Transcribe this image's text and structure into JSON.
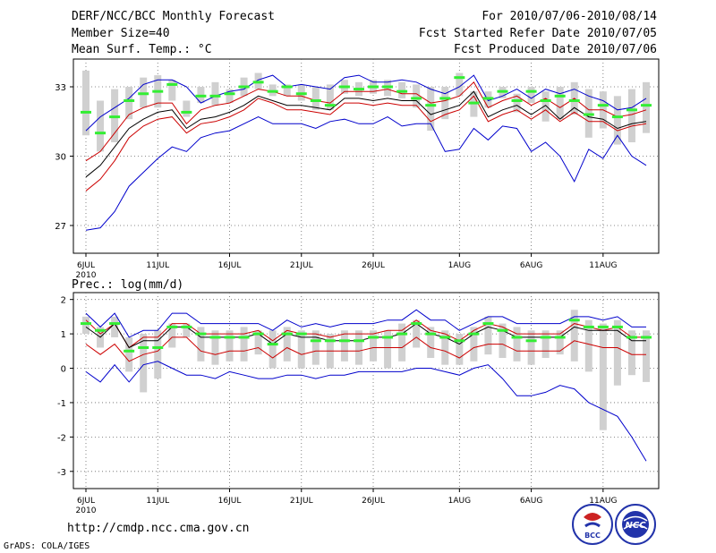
{
  "header": {
    "title": "DERF/NCC/BCC Monthly Forecast",
    "member": "Member Size=40",
    "variable": "Mean Surf. Temp.: °C",
    "period": "For 2010/07/06-2010/08/14",
    "refer": "Fcst Started Refer Date 2010/07/05",
    "produced": "Fcst Produced Date 2010/07/06"
  },
  "footer": {
    "url": "http://cmdp.ncc.cma.gov.cn",
    "grads": "GrADS: COLA/IGES",
    "logo1": "BCC",
    "logo2": "NCC"
  },
  "colors": {
    "max_min": "#0000cc",
    "pct_line": "#cc0000",
    "mean_line": "#000000",
    "bar": "#d0d0d0",
    "marker": "#33ee33"
  },
  "chart_data": [
    {
      "type": "line",
      "title": "Mean Surf. Temp.: °C",
      "ylim": [
        25.8,
        34.2
      ],
      "yticks": [
        27,
        30,
        33
      ],
      "xticks": [
        0,
        5,
        10,
        15,
        20,
        26,
        31,
        36
      ],
      "xtick_labels": [
        "6JUL",
        "11JUL",
        "16JUL",
        "21JUL",
        "26JUL",
        "1AUG",
        "6AUG",
        "11AUG"
      ],
      "year_label": "2010",
      "days": 40,
      "series": [
        {
          "name": "max",
          "values": [
            31.1,
            31.7,
            32.1,
            32.5,
            33.1,
            33.3,
            33.3,
            33.0,
            32.3,
            32.6,
            32.8,
            32.9,
            33.3,
            33.5,
            33.0,
            33.1,
            33.0,
            32.9,
            33.4,
            33.5,
            33.2,
            33.2,
            33.3,
            33.2,
            32.9,
            32.7,
            33.0,
            33.5,
            32.4,
            32.6,
            32.9,
            32.5,
            32.9,
            32.7,
            32.9,
            32.6,
            32.4,
            32.0,
            32.1,
            32.5
          ]
        },
        {
          "name": "high",
          "values": [
            29.8,
            30.2,
            31.0,
            31.8,
            32.1,
            32.3,
            32.3,
            31.4,
            32.0,
            32.2,
            32.3,
            32.6,
            32.9,
            32.8,
            32.6,
            32.6,
            32.4,
            32.3,
            32.8,
            32.8,
            32.8,
            32.9,
            32.7,
            32.7,
            32.3,
            32.4,
            32.6,
            33.2,
            32.1,
            32.4,
            32.6,
            32.2,
            32.5,
            32.1,
            32.5,
            32.0,
            32.0,
            31.7,
            31.8,
            32.0
          ]
        },
        {
          "name": "mean",
          "values": [
            29.1,
            29.6,
            30.4,
            31.2,
            31.6,
            31.9,
            32.0,
            31.2,
            31.6,
            31.7,
            31.9,
            32.2,
            32.6,
            32.4,
            32.2,
            32.2,
            32.1,
            32.0,
            32.5,
            32.5,
            32.4,
            32.5,
            32.4,
            32.4,
            31.8,
            32.0,
            32.2,
            32.8,
            31.7,
            32.0,
            32.2,
            31.8,
            32.2,
            31.6,
            32.1,
            31.7,
            31.6,
            31.2,
            31.4,
            31.5
          ]
        },
        {
          "name": "low",
          "values": [
            28.5,
            29.0,
            29.8,
            30.8,
            31.3,
            31.6,
            31.7,
            31.0,
            31.4,
            31.5,
            31.7,
            32.0,
            32.5,
            32.3,
            32.0,
            32.0,
            31.9,
            31.8,
            32.3,
            32.3,
            32.2,
            32.3,
            32.2,
            32.2,
            31.5,
            31.8,
            32.0,
            32.6,
            31.5,
            31.8,
            32.0,
            31.6,
            32.0,
            31.5,
            31.9,
            31.5,
            31.5,
            31.1,
            31.3,
            31.4
          ]
        },
        {
          "name": "min",
          "values": [
            26.8,
            26.9,
            27.6,
            28.7,
            29.3,
            29.9,
            30.4,
            30.2,
            30.8,
            31.0,
            31.1,
            31.4,
            31.7,
            31.4,
            31.4,
            31.4,
            31.2,
            31.5,
            31.6,
            31.4,
            31.4,
            31.7,
            31.3,
            31.4,
            31.4,
            30.2,
            30.3,
            31.2,
            30.7,
            31.3,
            31.2,
            30.2,
            30.6,
            30.0,
            28.9,
            30.3,
            29.9,
            30.9,
            30.0,
            29.6
          ]
        },
        {
          "name": "marker",
          "values": [
            31.9,
            31.0,
            31.7,
            32.4,
            32.7,
            32.8,
            33.1,
            31.9,
            32.6,
            32.6,
            32.7,
            33.0,
            33.2,
            32.8,
            33.0,
            32.7,
            32.4,
            32.2,
            33.0,
            32.9,
            33.0,
            33.0,
            32.8,
            32.5,
            32.2,
            32.5,
            33.4,
            32.3,
            32.5,
            32.8,
            32.4,
            32.8,
            32.4,
            32.6,
            32.4,
            31.8,
            32.2,
            31.7,
            32.0,
            32.2
          ]
        },
        {
          "name": "bar_top",
          "values": [
            33.7,
            32.4,
            32.9,
            33.0,
            33.4,
            33.5,
            33.3,
            32.4,
            33.0,
            33.2,
            32.9,
            33.4,
            33.6,
            33.1,
            33.1,
            33.1,
            33.0,
            33.1,
            33.3,
            33.2,
            33.3,
            33.3,
            33.2,
            33.1,
            33.0,
            33.0,
            33.6,
            32.8,
            32.8,
            33.0,
            32.7,
            33.0,
            32.8,
            33.0,
            33.2,
            32.9,
            32.8,
            32.6,
            32.9,
            33.2
          ]
        },
        {
          "name": "bar_bottom",
          "values": [
            30.9,
            30.2,
            30.6,
            31.6,
            32.1,
            32.1,
            32.4,
            31.7,
            32.3,
            32.2,
            32.3,
            32.6,
            32.9,
            32.6,
            32.6,
            32.4,
            32.0,
            32.0,
            32.7,
            32.6,
            32.7,
            32.6,
            32.5,
            32.1,
            31.1,
            31.6,
            32.6,
            31.7,
            32.1,
            32.5,
            31.9,
            32.3,
            31.5,
            31.6,
            31.8,
            30.8,
            31.2,
            30.5,
            30.6,
            31.0
          ]
        }
      ]
    },
    {
      "type": "line",
      "title": "Prec.: log(mm/d)",
      "ylim": [
        -3.5,
        2.2
      ],
      "yticks": [
        -3,
        -2,
        -1,
        0,
        1,
        2
      ],
      "xticks": [
        0,
        5,
        10,
        15,
        20,
        26,
        31,
        36
      ],
      "xtick_labels": [
        "6JUL",
        "11JUL",
        "16JUL",
        "21JUL",
        "26JUL",
        "1AUG",
        "6AUG",
        "11AUG"
      ],
      "year_label": "2010",
      "days": 40,
      "series": [
        {
          "name": "max",
          "values": [
            1.6,
            1.2,
            1.6,
            0.9,
            1.1,
            1.1,
            1.6,
            1.6,
            1.3,
            1.3,
            1.3,
            1.3,
            1.3,
            1.1,
            1.4,
            1.2,
            1.3,
            1.2,
            1.3,
            1.3,
            1.3,
            1.4,
            1.4,
            1.7,
            1.4,
            1.4,
            1.1,
            1.3,
            1.5,
            1.5,
            1.3,
            1.3,
            1.3,
            1.3,
            1.5,
            1.5,
            1.4,
            1.5,
            1.2,
            1.2
          ]
        },
        {
          "name": "high",
          "values": [
            1.4,
            1.0,
            1.3,
            0.6,
            0.9,
            0.9,
            1.3,
            1.3,
            1.0,
            1.0,
            1.0,
            1.0,
            1.1,
            0.8,
            1.1,
            1.0,
            1.0,
            0.9,
            1.0,
            1.0,
            1.0,
            1.1,
            1.1,
            1.4,
            1.1,
            1.0,
            0.8,
            1.1,
            1.3,
            1.2,
            1.0,
            1.0,
            1.0,
            1.0,
            1.3,
            1.2,
            1.1,
            1.2,
            0.9,
            0.9
          ]
        },
        {
          "name": "mean",
          "values": [
            1.2,
            0.9,
            1.3,
            0.6,
            0.8,
            0.8,
            1.2,
            1.2,
            0.9,
            0.9,
            0.9,
            0.9,
            1.0,
            0.7,
            1.0,
            0.9,
            0.9,
            0.8,
            0.8,
            0.8,
            0.9,
            0.9,
            1.0,
            1.3,
            1.0,
            0.9,
            0.7,
            1.0,
            1.2,
            1.1,
            0.9,
            0.9,
            0.9,
            0.9,
            1.2,
            1.1,
            1.1,
            1.1,
            0.8,
            0.8
          ]
        },
        {
          "name": "low",
          "values": [
            0.7,
            0.4,
            0.7,
            0.2,
            0.4,
            0.5,
            0.9,
            0.9,
            0.5,
            0.4,
            0.5,
            0.5,
            0.6,
            0.3,
            0.6,
            0.4,
            0.5,
            0.5,
            0.5,
            0.5,
            0.6,
            0.6,
            0.6,
            0.9,
            0.6,
            0.5,
            0.3,
            0.6,
            0.7,
            0.7,
            0.5,
            0.5,
            0.5,
            0.5,
            0.8,
            0.7,
            0.6,
            0.6,
            0.4,
            0.4
          ]
        },
        {
          "name": "min",
          "values": [
            -0.1,
            -0.4,
            0.1,
            -0.4,
            0.1,
            0.2,
            0.0,
            -0.2,
            -0.2,
            -0.3,
            -0.1,
            -0.2,
            -0.3,
            -0.3,
            -0.2,
            -0.2,
            -0.3,
            -0.2,
            -0.2,
            -0.1,
            -0.1,
            -0.1,
            -0.1,
            0.0,
            0.0,
            -0.1,
            -0.2,
            0.0,
            0.1,
            -0.3,
            -0.8,
            -0.8,
            -0.7,
            -0.5,
            -0.6,
            -1.0,
            -1.2,
            -1.4,
            -2.0,
            -2.7
          ]
        },
        {
          "name": "marker",
          "values": [
            1.3,
            1.1,
            1.3,
            0.5,
            0.6,
            0.6,
            1.2,
            1.2,
            1.0,
            0.9,
            0.9,
            0.9,
            1.0,
            0.7,
            1.0,
            1.0,
            0.8,
            0.8,
            0.8,
            0.8,
            0.9,
            0.9,
            1.0,
            1.3,
            1.0,
            0.9,
            0.8,
            1.0,
            1.3,
            1.1,
            0.9,
            0.8,
            0.9,
            0.9,
            1.4,
            1.2,
            1.2,
            1.2,
            0.9,
            0.9
          ]
        },
        {
          "name": "bar_top",
          "values": [
            1.5,
            1.2,
            1.5,
            0.9,
            1.0,
            1.1,
            1.3,
            1.3,
            1.2,
            1.1,
            1.1,
            1.2,
            1.1,
            1.1,
            1.2,
            1.1,
            1.1,
            1.0,
            1.1,
            1.1,
            1.1,
            1.1,
            1.3,
            1.4,
            1.2,
            1.1,
            1.0,
            1.2,
            1.5,
            1.3,
            1.2,
            1.1,
            1.1,
            1.1,
            1.7,
            1.4,
            1.3,
            1.4,
            1.1,
            1.1
          ]
        },
        {
          "name": "bar_bottom",
          "values": [
            1.0,
            0.6,
            0.9,
            -0.1,
            -0.7,
            -0.3,
            0.6,
            0.9,
            0.2,
            0.1,
            0.2,
            0.2,
            0.4,
            0.0,
            0.2,
            0.0,
            0.1,
            0.0,
            0.2,
            0.1,
            0.2,
            0.0,
            0.2,
            0.6,
            0.3,
            0.1,
            0.1,
            0.2,
            0.4,
            0.3,
            0.2,
            0.1,
            0.3,
            0.4,
            0.2,
            -0.1,
            -1.8,
            -0.5,
            -0.2,
            -0.4
          ]
        }
      ]
    }
  ]
}
